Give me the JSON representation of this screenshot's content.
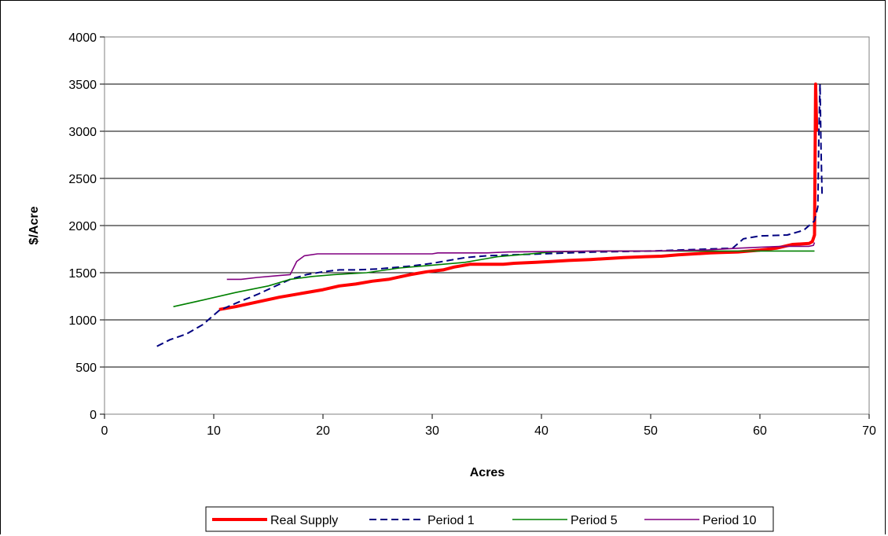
{
  "chart_data": {
    "type": "line",
    "title": "",
    "xlabel": "Acres",
    "ylabel": "$/Acre",
    "xlim": [
      0,
      70
    ],
    "ylim": [
      0,
      4000
    ],
    "xticks": [
      0,
      10,
      20,
      30,
      40,
      50,
      60,
      70
    ],
    "yticks": [
      0,
      500,
      1000,
      1500,
      2000,
      2500,
      3000,
      3500,
      4000
    ],
    "grid": "horizontal",
    "legend_position": "bottom",
    "series": [
      {
        "name": "Real Supply",
        "color": "#ff0000",
        "style": "solid-thick",
        "points": [
          [
            10.5,
            1110
          ],
          [
            12,
            1140
          ],
          [
            14,
            1190
          ],
          [
            16,
            1240
          ],
          [
            18,
            1280
          ],
          [
            20,
            1320
          ],
          [
            21.5,
            1360
          ],
          [
            23,
            1380
          ],
          [
            24.5,
            1410
          ],
          [
            26,
            1430
          ],
          [
            28,
            1480
          ],
          [
            29.5,
            1510
          ],
          [
            31,
            1530
          ],
          [
            32,
            1560
          ],
          [
            33.5,
            1590
          ],
          [
            36.5,
            1590
          ],
          [
            37.5,
            1600
          ],
          [
            39.5,
            1610
          ],
          [
            41,
            1620
          ],
          [
            42.5,
            1630
          ],
          [
            44.5,
            1640
          ],
          [
            46,
            1650
          ],
          [
            47.5,
            1660
          ],
          [
            49.5,
            1670
          ],
          [
            51,
            1675
          ],
          [
            52.5,
            1690
          ],
          [
            54,
            1700
          ],
          [
            55.5,
            1710
          ],
          [
            56.5,
            1715
          ],
          [
            58,
            1720
          ],
          [
            60,
            1740
          ],
          [
            61.5,
            1760
          ],
          [
            63,
            1800
          ],
          [
            64.5,
            1810
          ],
          [
            64.8,
            1830
          ],
          [
            65.0,
            1900
          ],
          [
            65.1,
            3500
          ],
          [
            65.2,
            3000
          ]
        ]
      },
      {
        "name": "Period 1",
        "color": "#000080",
        "style": "dashed",
        "points": [
          [
            4.8,
            720
          ],
          [
            6,
            790
          ],
          [
            7.5,
            850
          ],
          [
            9,
            950
          ],
          [
            10.5,
            1100
          ],
          [
            12.5,
            1200
          ],
          [
            14,
            1270
          ],
          [
            15.5,
            1350
          ],
          [
            17,
            1430
          ],
          [
            18.5,
            1480
          ],
          [
            20,
            1510
          ],
          [
            21.5,
            1530
          ],
          [
            23,
            1530
          ],
          [
            25,
            1540
          ],
          [
            28,
            1570
          ],
          [
            30,
            1600
          ],
          [
            31.5,
            1630
          ],
          [
            33,
            1660
          ],
          [
            35,
            1680
          ],
          [
            40,
            1700
          ],
          [
            45,
            1720
          ],
          [
            50,
            1730
          ],
          [
            55,
            1750
          ],
          [
            57.5,
            1760
          ],
          [
            58.5,
            1860
          ],
          [
            60,
            1890
          ],
          [
            62.5,
            1900
          ],
          [
            64,
            1950
          ],
          [
            65.0,
            2050
          ],
          [
            65.3,
            2200
          ],
          [
            65.4,
            3000
          ],
          [
            65.5,
            3500
          ],
          [
            65.6,
            2800
          ],
          [
            65.7,
            2300
          ]
        ]
      },
      {
        "name": "Period 5",
        "color": "#008000",
        "style": "solid",
        "points": [
          [
            6.3,
            1140
          ],
          [
            9,
            1210
          ],
          [
            12,
            1290
          ],
          [
            15,
            1360
          ],
          [
            17,
            1430
          ],
          [
            19,
            1460
          ],
          [
            21,
            1480
          ],
          [
            24,
            1500
          ],
          [
            27,
            1550
          ],
          [
            30,
            1580
          ],
          [
            33,
            1610
          ],
          [
            35,
            1650
          ],
          [
            36,
            1670
          ],
          [
            38,
            1690
          ],
          [
            41,
            1720
          ],
          [
            45,
            1730
          ],
          [
            50,
            1730
          ],
          [
            55,
            1730
          ],
          [
            60,
            1730
          ],
          [
            65,
            1730
          ]
        ]
      },
      {
        "name": "Period 10",
        "color": "#800080",
        "style": "solid",
        "points": [
          [
            11.2,
            1430
          ],
          [
            12.5,
            1430
          ],
          [
            14,
            1450
          ],
          [
            16,
            1470
          ],
          [
            17,
            1480
          ],
          [
            17.6,
            1620
          ],
          [
            18.3,
            1680
          ],
          [
            19.5,
            1700
          ],
          [
            25,
            1700
          ],
          [
            30,
            1700
          ],
          [
            30.5,
            1710
          ],
          [
            32,
            1710
          ],
          [
            35,
            1710
          ],
          [
            37,
            1720
          ],
          [
            45,
            1730
          ],
          [
            50,
            1730
          ],
          [
            55,
            1740
          ],
          [
            58,
            1760
          ],
          [
            60,
            1770
          ],
          [
            62,
            1780
          ],
          [
            64.5,
            1780
          ],
          [
            64.9,
            1790
          ],
          [
            65.0,
            1820
          ]
        ]
      }
    ]
  }
}
